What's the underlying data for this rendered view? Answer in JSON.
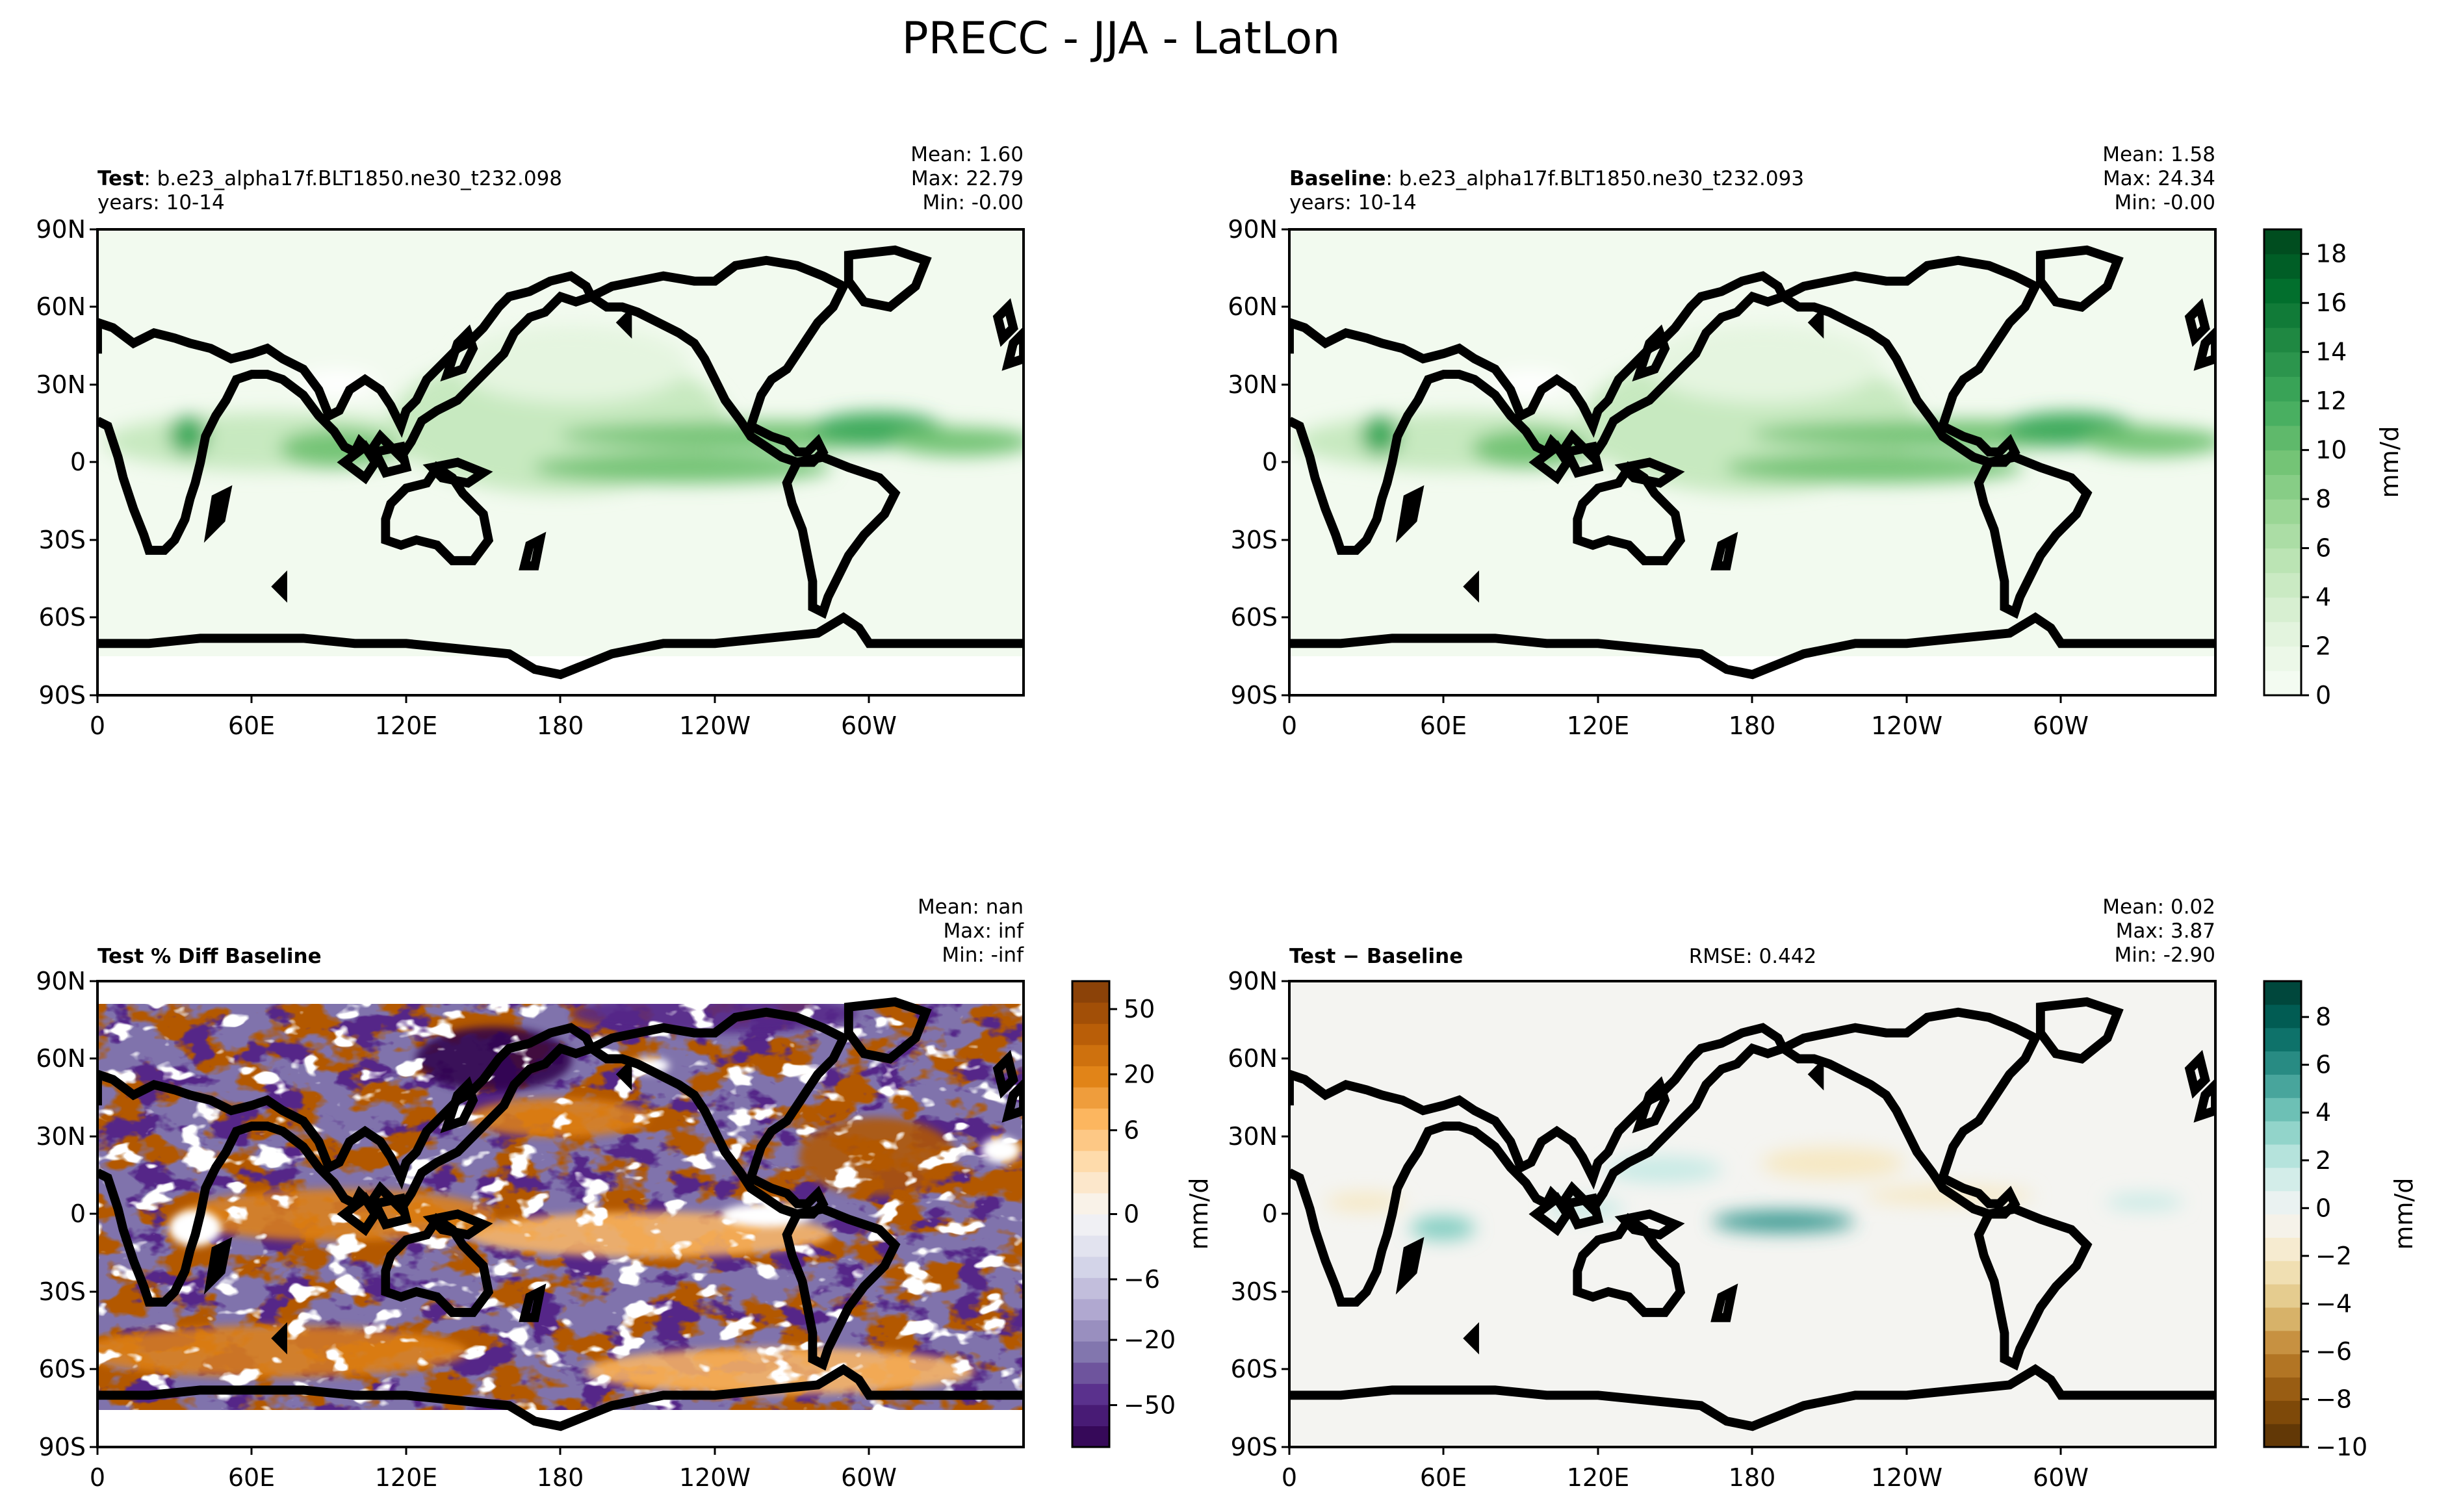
{
  "title": "PRECC - JJA - LatLon",
  "colors": {
    "test_baseline_cmap": [
      "#f7fcf5",
      "#e5f5e0",
      "#c7e9c0",
      "#a1d99b",
      "#74c476",
      "#41ab5d",
      "#238b45",
      "#006d2c",
      "#00441b"
    ],
    "pct_diff_cmap": [
      "#2d004b",
      "#542788",
      "#8073ac",
      "#b2abd2",
      "#d8daeb",
      "#f7f7f7",
      "#fee0b6",
      "#fdb863",
      "#e08214",
      "#b35806",
      "#7f3b08"
    ],
    "diff_cmap": [
      "#543005",
      "#8c510a",
      "#bf812d",
      "#dfc27d",
      "#f6e8c3",
      "#f5f5f5",
      "#c7eae5",
      "#80cdc1",
      "#35978f",
      "#01665e",
      "#003c30"
    ],
    "coastline": "#000000"
  },
  "axes_ticks": {
    "lat": [
      "90N",
      "60N",
      "30N",
      "0",
      "30S",
      "60S",
      "90S"
    ],
    "lon": [
      "0",
      "60E",
      "120E",
      "180",
      "120W",
      "60W"
    ]
  },
  "chart_data": [
    {
      "type": "heatmap",
      "panel": "test",
      "title_bold": "Test",
      "title_rest": ": b.e23_alpha17f.BLT1850.ne30_t232.098",
      "subtitle": "years: 10-14",
      "stats": {
        "mean": "Mean:  1.60",
        "max": "Max: 22.79",
        "min": "Min: -0.00"
      },
      "mean": 1.6,
      "max": 22.79,
      "min": -0.0,
      "xlim": [
        0,
        360
      ],
      "ylim": [
        -90,
        90
      ],
      "colormap": "Greens"
    },
    {
      "type": "heatmap",
      "panel": "baseline",
      "title_bold": "Baseline",
      "title_rest": ": b.e23_alpha17f.BLT1850.ne30_t232.093",
      "subtitle": "years: 10-14",
      "stats": {
        "mean": "Mean:  1.58",
        "max": "Max: 24.34",
        "min": "Min: -0.00"
      },
      "mean": 1.58,
      "max": 24.34,
      "min": -0.0,
      "xlim": [
        0,
        360
      ],
      "ylim": [
        -90,
        90
      ],
      "colormap": "Greens",
      "colorbar": {
        "label": "mm/d",
        "range": [
          0,
          19
        ],
        "ticks": [
          0,
          2,
          4,
          6,
          8,
          10,
          12,
          14,
          16,
          18
        ],
        "tick_labels": [
          "0",
          "2",
          "4",
          "6",
          "8",
          "10",
          "12",
          "14",
          "16",
          "18"
        ]
      }
    },
    {
      "type": "heatmap",
      "panel": "pct_diff",
      "title_bold": "Test % Diff Baseline",
      "stats": {
        "mean": "Mean:   nan",
        "max": "Max:   inf",
        "min": "Min:  -inf"
      },
      "xlim": [
        0,
        360
      ],
      "ylim": [
        -90,
        90
      ],
      "colormap": "PuOr_r",
      "colorbar": {
        "label": "mm/d",
        "tick_labels": [
          "50",
          "20",
          "6",
          "0",
          "−6",
          "−20",
          "−50"
        ]
      }
    },
    {
      "type": "heatmap",
      "panel": "diff",
      "title_bold": "Test − Baseline",
      "rmse": "RMSE: 0.442",
      "stats": {
        "mean": "Mean:  0.02",
        "max": "Max:  3.87",
        "min": "Min: -2.90"
      },
      "mean": 0.02,
      "max": 3.87,
      "min": -2.9,
      "xlim": [
        0,
        360
      ],
      "ylim": [
        -90,
        90
      ],
      "colormap": "BrBG",
      "colorbar": {
        "label": "mm/d",
        "range": [
          -10,
          9.5
        ],
        "ticks": [
          8,
          6,
          4,
          2,
          0,
          -2,
          -4,
          -6,
          -8,
          -10
        ],
        "tick_labels": [
          "8",
          "6",
          "4",
          "2",
          "0",
          "−2",
          "−4",
          "−6",
          "−8",
          "−10"
        ]
      }
    }
  ]
}
